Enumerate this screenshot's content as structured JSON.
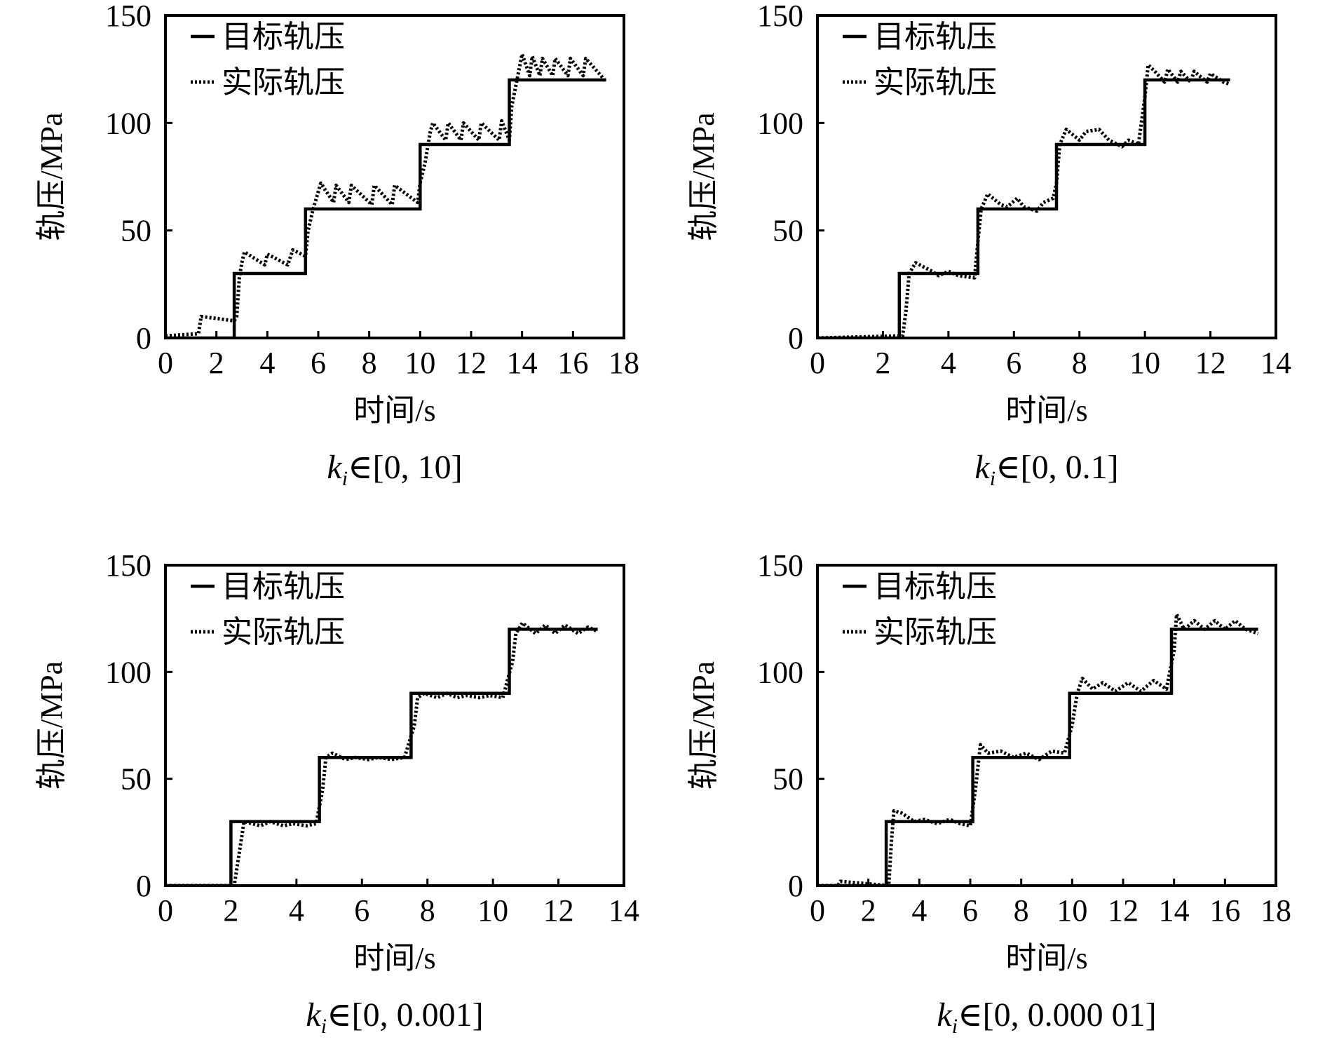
{
  "figure": {
    "panel_label_prefix": "k",
    "panel_label_subscript": "i",
    "element_symbol": "∈"
  },
  "chart_data": [
    {
      "type": "line",
      "caption_range": "[0, 10]",
      "xlabel": "时间/s",
      "ylabel": "轨压/MPa",
      "xlim": [
        0,
        18
      ],
      "ylim": [
        0,
        150
      ],
      "xticks": [
        "0",
        "2",
        "4",
        "6",
        "8",
        "10",
        "12",
        "14",
        "16",
        "18"
      ],
      "yticks": [
        "0",
        "50",
        "100",
        "150"
      ],
      "legend": [
        "目标轨压",
        "实际轨压"
      ],
      "legend_position": "top-left",
      "series": [
        {
          "name": "目标轨压",
          "style": "solid",
          "x": [
            0,
            2.7,
            2.7,
            5.5,
            5.5,
            10.0,
            10.0,
            13.5,
            13.5,
            17.3
          ],
          "y": [
            0,
            0,
            30,
            30,
            60,
            60,
            90,
            90,
            120,
            120
          ]
        },
        {
          "name": "实际轨压",
          "style": "dotted",
          "x": [
            0,
            1.3,
            1.4,
            2.7,
            2.8,
            2.9,
            3.0,
            3.1,
            3.9,
            4.0,
            4.8,
            5.0,
            5.5,
            5.6,
            5.8,
            6.0,
            6.1,
            6.6,
            6.7,
            7.2,
            7.3,
            8.1,
            8.2,
            8.9,
            9.0,
            9.9,
            10.0,
            10.2,
            10.4,
            10.5,
            11.0,
            11.1,
            11.6,
            11.7,
            12.3,
            12.4,
            13.1,
            13.2,
            13.5,
            13.6,
            13.8,
            14.0,
            14.3,
            14.4,
            14.7,
            14.8,
            15.2,
            15.3,
            15.8,
            15.9,
            16.4,
            16.5,
            17.1,
            17.3
          ],
          "y": [
            1,
            2,
            10,
            8,
            10,
            28,
            35,
            40,
            34,
            39,
            34,
            41,
            38,
            50,
            60,
            68,
            72,
            63,
            71,
            63,
            71,
            62,
            71,
            62,
            71,
            63,
            72,
            82,
            96,
            100,
            92,
            100,
            92,
            100,
            92,
            100,
            92,
            101,
            92,
            108,
            120,
            132,
            122,
            131,
            122,
            130,
            122,
            130,
            122,
            130,
            122,
            130,
            122,
            119
          ]
        }
      ]
    },
    {
      "type": "line",
      "caption_range": "[0, 0.1]",
      "xlabel": "时间/s",
      "ylabel": "轨压/MPa",
      "xlim": [
        0,
        14
      ],
      "ylim": [
        0,
        150
      ],
      "xticks": [
        "0",
        "2",
        "4",
        "6",
        "8",
        "10",
        "12",
        "14"
      ],
      "yticks": [
        "0",
        "50",
        "100",
        "150"
      ],
      "legend": [
        "目标轨压",
        "实际轨压"
      ],
      "legend_position": "top-left",
      "series": [
        {
          "name": "目标轨压",
          "style": "solid",
          "x": [
            0,
            2.5,
            2.5,
            4.9,
            4.9,
            7.3,
            7.3,
            10.0,
            10.0,
            12.6
          ],
          "y": [
            0,
            0,
            30,
            30,
            60,
            60,
            90,
            90,
            120,
            120
          ]
        },
        {
          "name": "实际轨压",
          "style": "dotted",
          "x": [
            0,
            2.6,
            2.7,
            2.8,
            3.0,
            3.5,
            3.7,
            4.0,
            4.3,
            4.8,
            4.9,
            5.0,
            5.2,
            5.6,
            5.8,
            6.1,
            6.3,
            6.7,
            6.9,
            7.2,
            7.3,
            7.4,
            7.6,
            8.0,
            8.2,
            8.6,
            8.9,
            9.3,
            9.5,
            9.8,
            10.0,
            10.1,
            10.3,
            10.6,
            10.7,
            11.0,
            11.1,
            11.4,
            11.5,
            11.9,
            12.0,
            12.4,
            12.6
          ],
          "y": [
            0,
            1,
            12,
            30,
            35,
            31,
            29,
            31,
            29,
            28,
            45,
            60,
            67,
            62,
            61,
            65,
            61,
            59,
            63,
            65,
            72,
            90,
            97,
            92,
            96,
            97,
            92,
            89,
            92,
            90,
            112,
            127,
            124,
            119,
            125,
            119,
            124,
            119,
            124,
            119,
            123,
            119,
            118
          ]
        }
      ]
    },
    {
      "type": "line",
      "caption_range": "[0, 0.001]",
      "xlabel": "时间/s",
      "ylabel": "轨压/MPa",
      "xlim": [
        0,
        14
      ],
      "ylim": [
        0,
        150
      ],
      "xticks": [
        "0",
        "2",
        "4",
        "6",
        "8",
        "10",
        "12",
        "14"
      ],
      "yticks": [
        "0",
        "50",
        "100",
        "150"
      ],
      "legend": [
        "目标轨压",
        "实际轨压"
      ],
      "legend_position": "top-left",
      "series": [
        {
          "name": "目标轨压",
          "style": "solid",
          "x": [
            0,
            2.0,
            2.0,
            4.7,
            4.7,
            7.5,
            7.5,
            10.5,
            10.5,
            13.2
          ],
          "y": [
            0,
            0,
            30,
            30,
            60,
            60,
            90,
            90,
            120,
            120
          ]
        },
        {
          "name": "实际轨压",
          "style": "dotted",
          "x": [
            0,
            2.1,
            2.2,
            2.4,
            2.9,
            3.2,
            3.6,
            3.9,
            4.3,
            4.6,
            4.8,
            4.9,
            5.1,
            5.5,
            5.8,
            6.2,
            6.5,
            6.9,
            7.3,
            7.6,
            7.7,
            7.9,
            8.3,
            8.6,
            8.9,
            9.2,
            9.6,
            9.9,
            10.3,
            10.6,
            10.7,
            10.9,
            11.3,
            11.6,
            11.9,
            12.2,
            12.6,
            12.9,
            13.2
          ],
          "y": [
            0,
            0,
            10,
            30,
            28,
            30,
            28,
            29,
            28,
            29,
            45,
            60,
            62,
            59,
            60,
            59,
            60,
            59,
            60,
            75,
            88,
            90,
            88,
            90,
            88,
            89,
            88,
            89,
            88,
            105,
            118,
            123,
            118,
            122,
            118,
            122,
            118,
            121,
            119
          ]
        }
      ]
    },
    {
      "type": "line",
      "caption_range": "[0, 0.000 01]",
      "xlabel": "时间/s",
      "ylabel": "轨压/MPa",
      "xlim": [
        0,
        18
      ],
      "ylim": [
        0,
        150
      ],
      "xticks": [
        "0",
        "2",
        "4",
        "6",
        "8",
        "10",
        "12",
        "14",
        "16",
        "18"
      ],
      "yticks": [
        "0",
        "50",
        "100",
        "150"
      ],
      "legend": [
        "目标轨压",
        "实际轨压"
      ],
      "legend_position": "top-left",
      "series": [
        {
          "name": "目标轨压",
          "style": "solid",
          "x": [
            0,
            2.7,
            2.7,
            6.1,
            6.1,
            9.9,
            9.9,
            13.9,
            13.9,
            17.3
          ],
          "y": [
            0,
            0,
            30,
            30,
            60,
            60,
            90,
            90,
            120,
            120
          ]
        },
        {
          "name": "实际轨压",
          "style": "dotted",
          "x": [
            0,
            0.8,
            0.9,
            2.8,
            2.9,
            3.0,
            3.3,
            3.8,
            4.2,
            4.7,
            5.2,
            5.6,
            6.0,
            6.2,
            6.4,
            6.7,
            7.2,
            7.7,
            8.2,
            8.7,
            9.2,
            9.7,
            10.0,
            10.2,
            10.4,
            10.8,
            11.2,
            11.7,
            12.2,
            12.7,
            13.2,
            13.7,
            14.0,
            14.1,
            14.4,
            14.8,
            15.2,
            15.6,
            16.0,
            16.4,
            16.8,
            17.3
          ],
          "y": [
            0,
            0,
            2,
            0,
            20,
            35,
            34,
            30,
            31,
            29,
            31,
            29,
            28,
            45,
            66,
            62,
            63,
            60,
            62,
            59,
            63,
            62,
            75,
            90,
            97,
            92,
            95,
            91,
            95,
            91,
            96,
            92,
            110,
            127,
            120,
            124,
            120,
            124,
            120,
            124,
            120,
            118
          ]
        }
      ]
    }
  ]
}
